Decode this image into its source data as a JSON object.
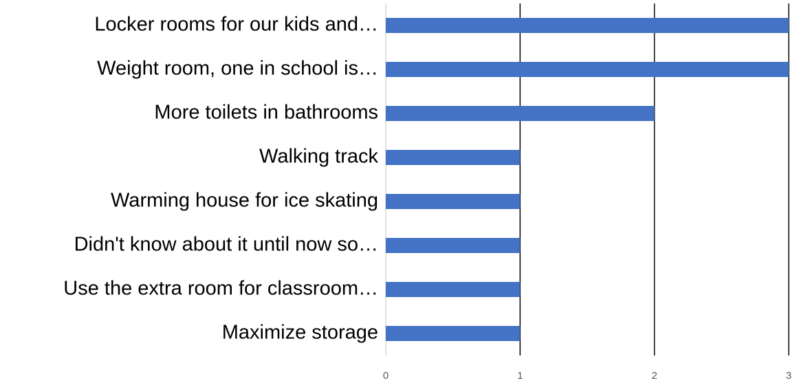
{
  "chart_data": {
    "type": "bar",
    "orientation": "horizontal",
    "categories": [
      "Locker rooms for our kids and…",
      "Weight room, one in school is…",
      "More toilets in bathrooms",
      "Walking track",
      "Warming house for ice skating",
      "Didn't know about it until now so…",
      "Use the extra room for classroom…",
      "Maximize storage"
    ],
    "values": [
      3,
      3,
      2,
      1,
      1,
      1,
      1,
      1
    ],
    "color": "#4472c4",
    "xlim": [
      0,
      3
    ],
    "xticks": [
      0,
      1,
      2,
      3
    ],
    "grid": true
  }
}
